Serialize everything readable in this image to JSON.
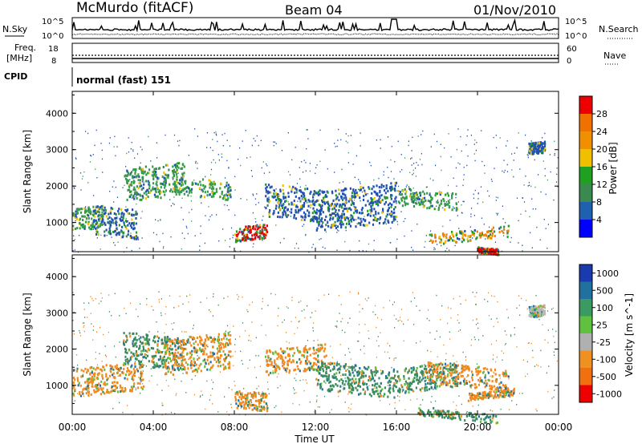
{
  "header": {
    "station": "McMurdo (fitACF)",
    "beam": "Beam 04",
    "date": "01/Nov/2010"
  },
  "top_panels": {
    "nsky_label": "N.Sky",
    "nsky_ticks": [
      "10^5",
      "10^0"
    ],
    "nsearch_label": "N.Search",
    "nsearch_ticks": [
      "10^5",
      "10^0"
    ],
    "freq_label_1": "Freq.",
    "freq_label_2": "[MHz]",
    "freq_ticks": [
      "18",
      "8"
    ],
    "nave_label": "Nave",
    "nave_ticks": [
      "60",
      "0"
    ],
    "cpid_label": "CPID",
    "cpid_value": "normal (fast) 151"
  },
  "chart_data": [
    {
      "type": "heatmap",
      "title": "",
      "xlabel": "",
      "ylabel": "Slant Range [km]",
      "x_ticks": [
        "00:00",
        "04:00",
        "08:00",
        "12:00",
        "16:00",
        "20:00",
        "00:00"
      ],
      "y_ticks": [
        "1000",
        "2000",
        "3000",
        "4000"
      ],
      "ylim": [
        200,
        4600
      ],
      "colorbar": {
        "label": "Power [dB]",
        "ticks": [
          "28",
          "24",
          "20",
          "16",
          "12",
          "8",
          "4"
        ],
        "colors": [
          "#ee0000",
          "#f07000",
          "#f09000",
          "#f0c000",
          "#20a020",
          "#3a8a50",
          "#2060b0",
          "#0000ff"
        ]
      },
      "echo_regions": [
        {
          "t0": 0.0,
          "t1": 1.5,
          "r0": 800,
          "r1": 1400,
          "level": "green"
        },
        {
          "t0": 1.0,
          "t1": 3.2,
          "r0": 700,
          "r1": 1500,
          "level": "blue"
        },
        {
          "t0": 2.5,
          "t1": 5.5,
          "r0": 1600,
          "r1": 2500,
          "level": "green"
        },
        {
          "t0": 5.0,
          "t1": 7.8,
          "r0": 1800,
          "r1": 2300,
          "level": "green"
        },
        {
          "t0": 8.0,
          "t1": 9.6,
          "r0": 500,
          "r1": 900,
          "level": "red"
        },
        {
          "t0": 9.5,
          "t1": 12.0,
          "r0": 1200,
          "r1": 2100,
          "level": "blue"
        },
        {
          "t0": 12.0,
          "t1": 16.0,
          "r0": 800,
          "r1": 1900,
          "level": "blue"
        },
        {
          "t0": 16.0,
          "t1": 19.0,
          "r0": 1500,
          "r1": 2000,
          "level": "green"
        },
        {
          "t0": 17.5,
          "t1": 21.5,
          "r0": 400,
          "r1": 700,
          "level": "orange"
        },
        {
          "t0": 20.0,
          "t1": 21.0,
          "r0": 200,
          "r1": 350,
          "level": "red"
        },
        {
          "t0": 22.5,
          "t1": 23.3,
          "r0": 2900,
          "r1": 3200,
          "level": "blue"
        }
      ]
    },
    {
      "type": "heatmap",
      "title": "",
      "xlabel": "Time UT",
      "ylabel": "Slant Range [km]",
      "x_ticks": [
        "00:00",
        "04:00",
        "08:00",
        "12:00",
        "16:00",
        "20:00",
        "00:00"
      ],
      "y_ticks": [
        "1000",
        "2000",
        "3000",
        "4000"
      ],
      "ylim": [
        200,
        4600
      ],
      "colorbar": {
        "label": "Velocity [m s^-1]",
        "ticks": [
          "1000",
          "500",
          "100",
          "25",
          "-25",
          "-100",
          "-500",
          "-1000"
        ],
        "colors": [
          "#1a3ab0",
          "#2070a0",
          "#3a9a60",
          "#60c040",
          "#b0b0b0",
          "#f09020",
          "#f07010",
          "#ee0000"
        ]
      },
      "echo_regions": [
        {
          "t0": 0.0,
          "t1": 3.5,
          "r0": 700,
          "r1": 1500,
          "level": "orange"
        },
        {
          "t0": 2.5,
          "t1": 5.5,
          "r0": 1600,
          "r1": 2500,
          "level": "green"
        },
        {
          "t0": 4.5,
          "t1": 7.8,
          "r0": 1300,
          "r1": 2300,
          "level": "orange"
        },
        {
          "t0": 8.0,
          "t1": 9.6,
          "r0": 400,
          "r1": 900,
          "level": "orange"
        },
        {
          "t0": 9.5,
          "t1": 12.5,
          "r0": 1300,
          "r1": 2000,
          "level": "orange"
        },
        {
          "t0": 12.0,
          "t1": 16.0,
          "r0": 900,
          "r1": 1700,
          "level": "green"
        },
        {
          "t0": 16.0,
          "t1": 19.0,
          "r0": 800,
          "r1": 1500,
          "level": "green"
        },
        {
          "t0": 17.5,
          "t1": 21.5,
          "r0": 1100,
          "r1": 1700,
          "level": "orange"
        },
        {
          "t0": 19.5,
          "t1": 21.8,
          "r0": 600,
          "r1": 800,
          "level": "orange"
        },
        {
          "t0": 17.0,
          "t1": 21.0,
          "r0": 200,
          "r1": 450,
          "level": "green"
        },
        {
          "t0": 22.5,
          "t1": 23.3,
          "r0": 2900,
          "r1": 3200,
          "level": "gray"
        }
      ]
    }
  ]
}
